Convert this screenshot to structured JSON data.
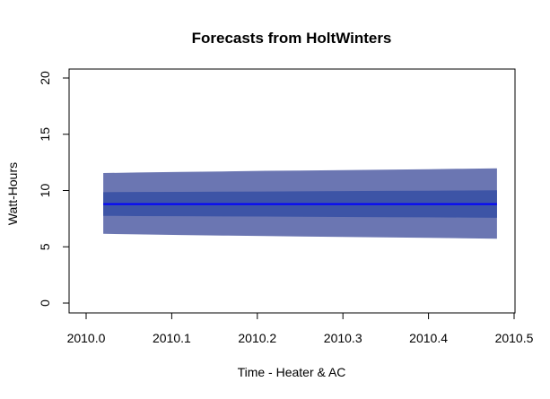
{
  "chart_data": {
    "type": "area",
    "title": "Forecasts from HoltWinters",
    "xlabel": "Time - Heater & AC",
    "ylabel": "Watt-Hours",
    "xlim": [
      2010.0,
      2010.5
    ],
    "ylim": [
      0,
      20
    ],
    "x_ticks": [
      "2010.0",
      "2010.1",
      "2010.2",
      "2010.3",
      "2010.4",
      "2010.5"
    ],
    "y_ticks": [
      "0",
      "5",
      "10",
      "15",
      "20"
    ],
    "grid": false,
    "x": [
      2010.02,
      2010.06,
      2010.11,
      2010.16,
      2010.21,
      2010.25,
      2010.3,
      2010.35,
      2010.4,
      2010.44,
      2010.48
    ],
    "series": [
      {
        "name": "",
        "role": "point forecast",
        "color": "#0000ff",
        "values": [
          8.8,
          8.8,
          8.8,
          8.8,
          8.8,
          8.8,
          8.8,
          8.8,
          8.8,
          8.8,
          8.8
        ]
      },
      {
        "name": "",
        "role": "80% interval",
        "color": "#3d54a6",
        "lower": [
          7.75,
          7.73,
          7.72,
          7.7,
          7.69,
          7.67,
          7.65,
          7.63,
          7.62,
          7.6,
          7.58
        ],
        "upper": [
          9.85,
          9.87,
          9.88,
          9.9,
          9.91,
          9.93,
          9.95,
          9.97,
          9.98,
          10.0,
          10.02
        ]
      },
      {
        "name": "",
        "role": "95% interval",
        "color": "#6b76b2",
        "lower": [
          6.15,
          6.1,
          6.05,
          6.0,
          5.95,
          5.92,
          5.88,
          5.84,
          5.8,
          5.76,
          5.72
        ],
        "upper": [
          11.55,
          11.6,
          11.65,
          11.7,
          11.75,
          11.78,
          11.82,
          11.86,
          11.9,
          11.94,
          11.98
        ]
      }
    ]
  }
}
